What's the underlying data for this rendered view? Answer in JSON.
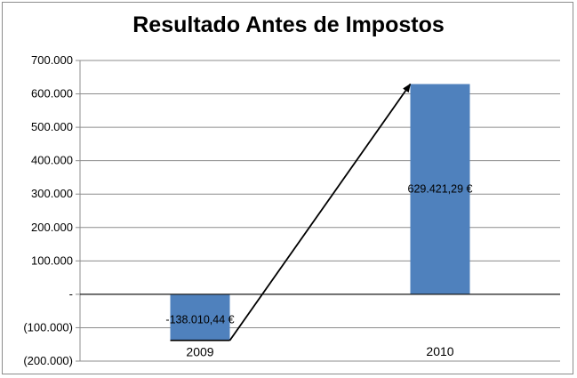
{
  "chart_data": {
    "type": "bar",
    "title": "Resultado Antes de Impostos",
    "categories": [
      "2009",
      "2010"
    ],
    "values": [
      -138010.44,
      629421.29
    ],
    "data_labels": [
      "-138.010,44 €",
      "629.421,29 €"
    ],
    "ylim": [
      -200000,
      700000
    ],
    "yticks": [
      700000,
      600000,
      500000,
      400000,
      300000,
      200000,
      100000,
      0,
      -100000,
      -200000
    ],
    "ytick_labels": [
      "700.000",
      "600.000",
      "500.000",
      "400.000",
      "300.000",
      "200.000",
      "100.000",
      "-",
      "(100.000)",
      "(200.000)"
    ],
    "grid": true,
    "legend": "none",
    "bar_color": "#4f81bd",
    "annotation": "arrow from 2009 bar to 2010 bar"
  }
}
